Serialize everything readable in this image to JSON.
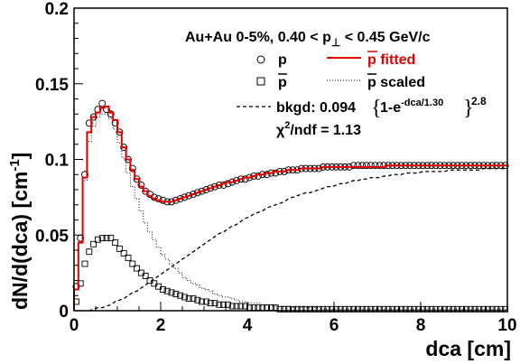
{
  "chart_data": {
    "type": "scatter",
    "xlabel": "dca [cm]",
    "ylabel": {
      "main": "dN/d(dca) [cm",
      "sup": "-1",
      "end": "]"
    },
    "xlim": [
      0,
      10
    ],
    "ylim": [
      0,
      0.2
    ],
    "x_ticks": [
      "0",
      "2",
      "4",
      "6",
      "8",
      "10"
    ],
    "y_ticks": [
      "0",
      "0.05",
      "0.1",
      "0.15",
      "0.2"
    ],
    "grid": false,
    "header": {
      "part1": "Au+Au 0-5%, 0.40 < p",
      "sub": "⊥",
      "part2": " < 0.45 GeV/c"
    },
    "legend": {
      "p": "p",
      "pbar": "p",
      "p_fitted": "p fitted",
      "pbar_scaled_p": "p",
      "pbar_scaled_word": " scaled",
      "bkgd_prefix": "bkgd: 0.094",
      "bkgd_body": "1-e",
      "bkgd_exp": "-dca/1.30",
      "bkgd_power": "2.8",
      "chi2_prefix": "χ",
      "chi2_sup": "2",
      "chi2_rest": "/ndf = 1.13"
    },
    "series": [
      {
        "name": "p",
        "marker": "circle",
        "x": [
          0.05,
          0.15,
          0.25,
          0.35,
          0.45,
          0.55,
          0.65,
          0.75,
          0.85,
          0.95,
          1.05,
          1.15,
          1.25,
          1.35,
          1.45,
          1.55,
          1.65,
          1.75,
          1.85,
          1.95,
          2.05,
          2.15,
          2.25,
          2.35,
          2.45,
          2.55,
          2.65,
          2.75,
          2.85,
          2.95,
          3.05,
          3.15,
          3.25,
          3.35,
          3.45,
          3.55,
          3.65,
          3.75,
          3.85,
          3.95,
          4.05,
          4.15,
          4.25,
          4.35,
          4.45,
          4.55,
          4.65,
          4.75,
          4.85,
          4.95,
          5.05,
          5.15,
          5.25,
          5.35,
          5.45,
          5.55,
          5.65,
          5.75,
          5.85,
          5.95,
          6.05,
          6.15,
          6.25,
          6.35,
          6.45,
          6.55,
          6.65,
          6.75,
          6.85,
          6.95,
          7.05,
          7.15,
          7.25,
          7.35,
          7.45,
          7.55,
          7.65,
          7.75,
          7.85,
          7.95,
          8.05,
          8.15,
          8.25,
          8.35,
          8.45,
          8.55,
          8.65,
          8.75,
          8.85,
          8.95,
          9.05,
          9.15,
          9.25,
          9.35,
          9.45,
          9.55,
          9.65,
          9.75,
          9.85,
          9.95
        ],
        "y": [
          0.016,
          0.048,
          0.09,
          0.124,
          0.128,
          0.133,
          0.137,
          0.133,
          0.13,
          0.124,
          0.118,
          0.108,
          0.1,
          0.094,
          0.087,
          0.083,
          0.079,
          0.077,
          0.075,
          0.074,
          0.073,
          0.072,
          0.072,
          0.073,
          0.074,
          0.075,
          0.076,
          0.077,
          0.078,
          0.079,
          0.08,
          0.081,
          0.082,
          0.083,
          0.083,
          0.084,
          0.085,
          0.086,
          0.087,
          0.087,
          0.088,
          0.089,
          0.089,
          0.09,
          0.09,
          0.091,
          0.091,
          0.092,
          0.092,
          0.093,
          0.093,
          0.093,
          0.094,
          0.094,
          0.094,
          0.094,
          0.094,
          0.095,
          0.095,
          0.095,
          0.095,
          0.095,
          0.095,
          0.095,
          0.096,
          0.096,
          0.096,
          0.096,
          0.096,
          0.096,
          0.096,
          0.096,
          0.096,
          0.096,
          0.096,
          0.096,
          0.096,
          0.096,
          0.096,
          0.096,
          0.096,
          0.096,
          0.096,
          0.096,
          0.096,
          0.096,
          0.096,
          0.096,
          0.096,
          0.096,
          0.096,
          0.096,
          0.096,
          0.096,
          0.096,
          0.096,
          0.096,
          0.096,
          0.096,
          0.096
        ]
      },
      {
        "name": "pbar",
        "marker": "square",
        "x": [
          0.05,
          0.15,
          0.25,
          0.35,
          0.45,
          0.55,
          0.65,
          0.75,
          0.85,
          0.95,
          1.05,
          1.15,
          1.25,
          1.35,
          1.45,
          1.55,
          1.65,
          1.75,
          1.85,
          1.95,
          2.05,
          2.15,
          2.25,
          2.35,
          2.45,
          2.55,
          2.65,
          2.75,
          2.85,
          2.95,
          3.05,
          3.15,
          3.25,
          3.35,
          3.45,
          3.55,
          3.65,
          3.75,
          3.85,
          3.95,
          4.05,
          4.15,
          4.25,
          4.35,
          4.45,
          4.55,
          4.65,
          4.75,
          4.85,
          4.95,
          5.05,
          5.15,
          5.25,
          5.35,
          5.45,
          5.55,
          5.65,
          5.75,
          5.85,
          5.95,
          6.05,
          6.15,
          6.25,
          6.35,
          6.45,
          6.55,
          6.65,
          6.75,
          6.85,
          6.95,
          7.05,
          7.15,
          7.25,
          7.35,
          7.45,
          7.55,
          7.65,
          7.75,
          7.85,
          7.95,
          8.05,
          8.15,
          8.25,
          8.35,
          8.45,
          8.55,
          8.65,
          8.75,
          8.85,
          8.95,
          9.05,
          9.15,
          9.25,
          9.35,
          9.45,
          9.55,
          9.65,
          9.75,
          9.85,
          9.95
        ],
        "y": [
          0.006,
          0.018,
          0.031,
          0.039,
          0.044,
          0.047,
          0.048,
          0.048,
          0.048,
          0.045,
          0.041,
          0.038,
          0.035,
          0.031,
          0.028,
          0.025,
          0.023,
          0.02,
          0.018,
          0.016,
          0.014,
          0.013,
          0.012,
          0.011,
          0.01,
          0.009,
          0.008,
          0.008,
          0.007,
          0.006,
          0.006,
          0.005,
          0.005,
          0.004,
          0.004,
          0.004,
          0.003,
          0.003,
          0.003,
          0.003,
          0.002,
          0.002,
          0.002,
          0.002,
          0.002,
          0.002,
          0.002,
          0.001,
          0.001,
          0.001,
          0.001,
          0.001,
          0.001,
          0.001,
          0.001,
          0.001,
          0.001,
          0.001,
          0.001,
          0.001,
          0.001,
          0.001,
          0.001,
          0.001,
          0.001,
          0.001,
          0.001,
          0.001,
          0.001,
          0.001,
          0.001,
          0.001,
          0.001,
          0.001,
          0.001,
          0.001,
          0.001,
          0.001,
          0.001,
          0.001,
          0.001,
          0.001,
          0.001,
          0.001,
          0.001,
          0.001,
          0.001,
          0.001,
          0.001,
          0.001,
          0.001,
          0.001,
          0.001,
          0.001,
          0.001,
          0.001,
          0.001,
          0.001,
          0.001,
          0.001
        ]
      },
      {
        "name": "p fitted",
        "line": "red-step",
        "x": [
          0.05,
          0.15,
          0.25,
          0.35,
          0.45,
          0.55,
          0.65,
          0.75,
          0.85,
          0.95,
          1.05,
          1.15,
          1.25,
          1.35,
          1.45,
          1.55,
          1.65,
          1.75,
          1.85,
          1.95,
          2.05,
          2.15,
          2.25,
          2.35,
          2.45,
          2.55,
          2.65,
          2.75,
          2.85,
          2.95,
          3.05,
          3.15,
          3.25,
          3.35,
          3.45,
          3.55,
          3.65,
          3.75,
          3.85,
          3.95,
          4.05,
          4.15,
          4.25,
          4.35,
          4.45,
          4.55,
          4.65,
          4.75,
          4.85,
          4.95,
          5.05,
          5.15,
          5.25,
          5.35,
          5.45,
          5.55,
          5.65,
          5.75,
          5.85,
          5.95,
          6.05,
          6.15,
          6.25,
          6.35,
          6.45,
          6.55,
          6.65,
          6.75,
          6.85,
          6.95,
          7.05,
          7.15,
          7.25,
          7.35,
          7.45,
          7.55,
          7.65,
          7.75,
          7.85,
          7.95,
          8.05,
          8.15,
          8.25,
          8.35,
          8.45,
          8.55,
          8.65,
          8.75,
          8.85,
          8.95,
          9.05,
          9.15,
          9.25,
          9.35,
          9.45,
          9.55,
          9.65,
          9.75,
          9.85,
          9.95
        ],
        "y": [
          0.014,
          0.045,
          0.088,
          0.118,
          0.128,
          0.131,
          0.134,
          0.135,
          0.131,
          0.126,
          0.118,
          0.108,
          0.1,
          0.093,
          0.087,
          0.082,
          0.079,
          0.076,
          0.074,
          0.073,
          0.072,
          0.072,
          0.072,
          0.073,
          0.074,
          0.075,
          0.076,
          0.077,
          0.078,
          0.079,
          0.08,
          0.081,
          0.082,
          0.083,
          0.084,
          0.085,
          0.085,
          0.086,
          0.087,
          0.088,
          0.088,
          0.089,
          0.09,
          0.09,
          0.091,
          0.091,
          0.092,
          0.092,
          0.092,
          0.093,
          0.093,
          0.093,
          0.094,
          0.094,
          0.094,
          0.094,
          0.094,
          0.095,
          0.095,
          0.095,
          0.095,
          0.095,
          0.095,
          0.095,
          0.095,
          0.095,
          0.095,
          0.095,
          0.095,
          0.095,
          0.095,
          0.095,
          0.096,
          0.096,
          0.096,
          0.096,
          0.096,
          0.096,
          0.096,
          0.096,
          0.096,
          0.096,
          0.096,
          0.096,
          0.096,
          0.096,
          0.096,
          0.096,
          0.096,
          0.096,
          0.096,
          0.096,
          0.096,
          0.096,
          0.096,
          0.096,
          0.096,
          0.096,
          0.096,
          0.096
        ]
      },
      {
        "name": "pbar scaled",
        "line": "dotted-step",
        "x": [
          0.05,
          0.15,
          0.25,
          0.35,
          0.45,
          0.55,
          0.65,
          0.75,
          0.85,
          0.95,
          1.05,
          1.15,
          1.25,
          1.35,
          1.45,
          1.55,
          1.65,
          1.75,
          1.85,
          1.95,
          2.05,
          2.15,
          2.25,
          2.35,
          2.45,
          2.55,
          2.65,
          2.75,
          2.85,
          2.95,
          3.05,
          3.15,
          3.25,
          3.35,
          3.45,
          3.55,
          3.65,
          3.75,
          3.85,
          3.95,
          4.05,
          4.15,
          4.25,
          4.35,
          4.45,
          4.55,
          4.65,
          4.75,
          4.85,
          4.95,
          5.05,
          5.15,
          5.25,
          5.35,
          5.45,
          5.55,
          5.65,
          5.75,
          5.85,
          5.95,
          6.05,
          6.15,
          6.25,
          6.35,
          6.45,
          6.55,
          6.65,
          6.75,
          6.85,
          6.95,
          7.05,
          7.15,
          7.25,
          7.35,
          7.45,
          7.55,
          7.65,
          7.75,
          7.85,
          7.95,
          8.05,
          8.15,
          8.25,
          8.35,
          8.45,
          8.55,
          8.65,
          8.75,
          8.85,
          8.95,
          9.05,
          9.15,
          9.25,
          9.35,
          9.45,
          9.55,
          9.65,
          9.75,
          9.85,
          9.95
        ],
        "y": [
          0.014,
          0.045,
          0.086,
          0.112,
          0.122,
          0.128,
          0.13,
          0.13,
          0.127,
          0.12,
          0.111,
          0.101,
          0.091,
          0.082,
          0.074,
          0.066,
          0.058,
          0.052,
          0.047,
          0.042,
          0.037,
          0.034,
          0.031,
          0.028,
          0.025,
          0.022,
          0.02,
          0.018,
          0.017,
          0.015,
          0.014,
          0.013,
          0.011,
          0.01,
          0.009,
          0.009,
          0.008,
          0.007,
          0.006,
          0.006,
          0.005,
          0.005,
          0.005,
          0.004,
          0.004,
          0.004,
          0.003,
          0.003,
          0.003,
          0.003,
          0.002,
          0.002,
          0.002,
          0.002,
          0.002,
          0.002,
          0.002,
          0.001,
          0.001,
          0.001,
          0.001,
          0.001,
          0.001,
          0.001,
          0.001,
          0.001,
          0.001,
          0.001,
          0.001,
          0.001,
          0.001,
          0.001,
          0.001,
          0.001,
          0.001,
          0.001,
          0.001,
          0.001,
          0.001,
          0.001,
          0.001,
          0.001,
          0.001,
          0.001,
          0.001,
          0.001,
          0.001,
          0.001,
          0.001,
          0.001,
          0.001,
          0.001,
          0.001,
          0.001,
          0.001,
          0.001,
          0.001,
          0.001,
          0.001,
          0.001
        ]
      },
      {
        "name": "bkgd",
        "line": "dashed",
        "x": [
          0.05,
          0.15,
          0.25,
          0.35,
          0.45,
          0.55,
          0.65,
          0.75,
          0.85,
          0.95,
          1.05,
          1.15,
          1.25,
          1.35,
          1.45,
          1.55,
          1.65,
          1.75,
          1.85,
          1.95,
          2.05,
          2.15,
          2.25,
          2.35,
          2.45,
          2.55,
          2.65,
          2.75,
          2.85,
          2.95,
          3.05,
          3.15,
          3.25,
          3.35,
          3.45,
          3.55,
          3.65,
          3.75,
          3.85,
          3.95,
          4.05,
          4.15,
          4.25,
          4.35,
          4.45,
          4.55,
          4.65,
          4.75,
          4.85,
          4.95,
          5.05,
          5.15,
          5.25,
          5.35,
          5.45,
          5.55,
          5.65,
          5.75,
          5.85,
          5.95,
          6.05,
          6.15,
          6.25,
          6.35,
          6.45,
          6.55,
          6.65,
          6.75,
          6.85,
          6.95,
          7.05,
          7.15,
          7.25,
          7.35,
          7.45,
          7.55,
          7.65,
          7.75,
          7.85,
          7.95,
          8.05,
          8.15,
          8.25,
          8.35,
          8.45,
          8.55,
          8.65,
          8.75,
          8.85,
          8.95,
          9.05,
          9.15,
          9.25,
          9.35,
          9.45,
          9.55,
          9.65,
          9.75,
          9.85,
          9.95
        ],
        "y": [
          0.0,
          0.0,
          0.0,
          0.0,
          0.001,
          0.002,
          0.002,
          0.003,
          0.004,
          0.006,
          0.007,
          0.008,
          0.01,
          0.012,
          0.013,
          0.015,
          0.017,
          0.019,
          0.021,
          0.023,
          0.025,
          0.027,
          0.029,
          0.031,
          0.033,
          0.035,
          0.037,
          0.039,
          0.041,
          0.043,
          0.045,
          0.047,
          0.049,
          0.051,
          0.052,
          0.054,
          0.056,
          0.057,
          0.059,
          0.061,
          0.062,
          0.064,
          0.065,
          0.066,
          0.068,
          0.069,
          0.07,
          0.071,
          0.072,
          0.074,
          0.075,
          0.076,
          0.077,
          0.078,
          0.078,
          0.079,
          0.08,
          0.081,
          0.082,
          0.082,
          0.083,
          0.084,
          0.084,
          0.085,
          0.086,
          0.086,
          0.087,
          0.087,
          0.088,
          0.088,
          0.088,
          0.089,
          0.089,
          0.09,
          0.09,
          0.09,
          0.091,
          0.091,
          0.091,
          0.091,
          0.092,
          0.092,
          0.092,
          0.092,
          0.092,
          0.092,
          0.093,
          0.093,
          0.093,
          0.093,
          0.093,
          0.093,
          0.093,
          0.093,
          0.094,
          0.094,
          0.094,
          0.094,
          0.094,
          0.094
        ]
      }
    ]
  },
  "colors": {
    "fit": "#e00000",
    "marker": "#000000",
    "axis": "#000000"
  }
}
